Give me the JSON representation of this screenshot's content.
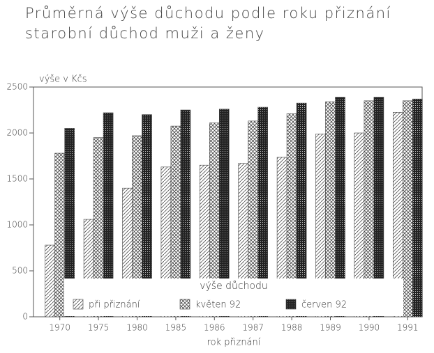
{
  "chart_data": {
    "type": "bar",
    "title": "Průměrná výše důchodu podle roku  přiznání",
    "subtitle": "starobní důchod  muži a ženy",
    "y_label": "výše v Kčs",
    "x_label": "rok přiznání",
    "legend_title": "výše důchodu",
    "categories": [
      "1970",
      "1975",
      "1980",
      "1985",
      "1986",
      "1987",
      "1988",
      "1989",
      "1990",
      "1991"
    ],
    "series": [
      {
        "name": "při přiznání",
        "color": "#555555",
        "values": [
          780,
          1060,
          1400,
          1630,
          1650,
          1670,
          1735,
          1990,
          2000,
          2225
        ]
      },
      {
        "name": "květen 92",
        "color": "#444444",
        "values": [
          1780,
          1950,
          1970,
          2075,
          2110,
          2130,
          2210,
          2340,
          2350,
          2350
        ]
      },
      {
        "name": "červen 92",
        "color": "#222222",
        "values": [
          2050,
          2220,
          2200,
          2250,
          2260,
          2280,
          2325,
          2390,
          2390,
          2370
        ]
      }
    ],
    "ylim": [
      0,
      2500
    ],
    "yticks": [
      0,
      500,
      1000,
      1500,
      2000,
      2500
    ]
  }
}
